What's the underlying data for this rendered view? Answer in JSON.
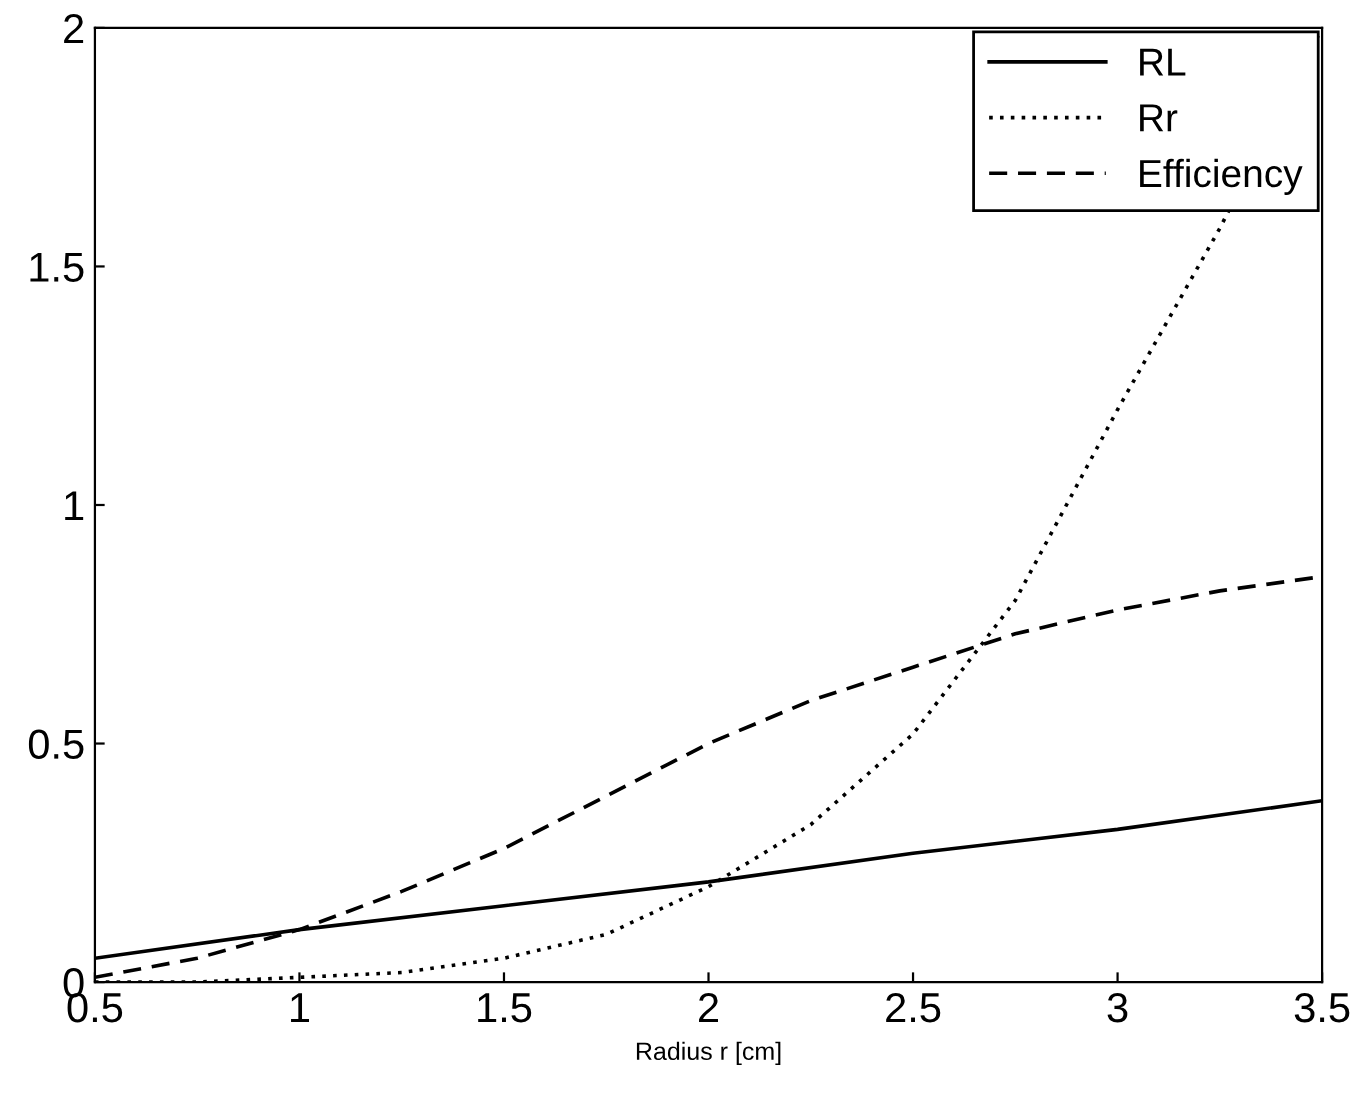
{
  "chart_data": {
    "type": "line",
    "xlabel": "Radius r [cm]",
    "xlim": [
      0.5,
      3.5
    ],
    "xticks": [
      0.5,
      1,
      1.5,
      2,
      2.5,
      3,
      3.5
    ],
    "ylim": [
      0,
      2
    ],
    "yticks": [
      0,
      0.5,
      1,
      1.5,
      2
    ],
    "grid": false,
    "legend": "top right",
    "series": [
      {
        "name": "RL",
        "color": "#000000",
        "line_style": "solid",
        "x": [
          0.5,
          1,
          1.5,
          2,
          2.5,
          3,
          3.5
        ],
        "values": [
          0.05,
          0.11,
          0.16,
          0.21,
          0.27,
          0.32,
          0.38
        ]
      },
      {
        "name": "Rr",
        "color": "#000000",
        "line_style": "dotted",
        "x": [
          0.5,
          0.75,
          1,
          1.25,
          1.5,
          1.75,
          2,
          2.25,
          2.5,
          2.75,
          3,
          3.25,
          3.5
        ],
        "values": [
          0.0,
          0.0,
          0.01,
          0.02,
          0.05,
          0.1,
          0.2,
          0.33,
          0.52,
          0.8,
          1.2,
          1.58,
          2.0
        ]
      },
      {
        "name": "Efficiency",
        "color": "#000000",
        "line_style": "dashed",
        "x": [
          0.5,
          0.75,
          1,
          1.25,
          1.5,
          1.75,
          2,
          2.25,
          2.5,
          2.75,
          3,
          3.25,
          3.5
        ],
        "values": [
          0.01,
          0.05,
          0.11,
          0.19,
          0.28,
          0.39,
          0.5,
          0.59,
          0.66,
          0.73,
          0.78,
          0.82,
          0.85
        ]
      }
    ]
  }
}
